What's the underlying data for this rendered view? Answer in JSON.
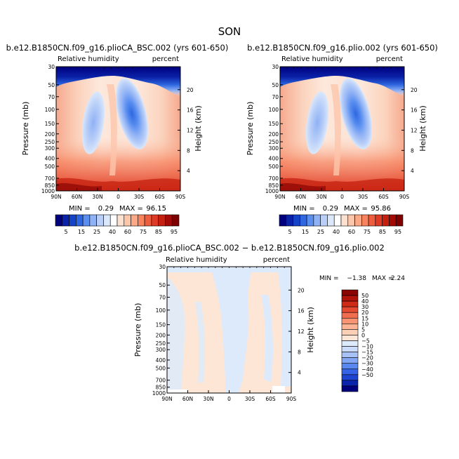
{
  "figure_title": "SON",
  "colors": {
    "rh_levels": [
      "#00007f",
      "#0a22a8",
      "#1443c8",
      "#2e67e0",
      "#5a8ff0",
      "#8fb1f5",
      "#b9cff8",
      "#dbe8fb",
      "#ffffff",
      "#fde1d0",
      "#fcc6ab",
      "#fba886",
      "#f7835f",
      "#ee5d3e",
      "#de3a25",
      "#c4200f",
      "#a30a05",
      "#7f0000"
    ],
    "diff_levels": [
      "#00007f",
      "#0a24ad",
      "#1e44d0",
      "#3664e6",
      "#5988f0",
      "#82a6f4",
      "#a8c2f7",
      "#cadcfa",
      "#ddeafc",
      "#fde6d6",
      "#fcd0b6",
      "#fbb394",
      "#f89373",
      "#f06e4f",
      "#e44a30",
      "#cf2a18",
      "#b0130a",
      "#8a0404"
    ]
  },
  "chart_data": [
    {
      "type": "heatmap",
      "title": "b.e12.B1850CN.f09_g16.plioCA_BSC.002 (yrs 601-650)",
      "subtitle_left": "Relative humidity",
      "subtitle_right": "percent",
      "ylabel": "Pressure (mb)",
      "ylabel_right": "Height (km)",
      "x_ticks": [
        "90N",
        "60N",
        "30N",
        "0",
        "30S",
        "60S",
        "90S"
      ],
      "x_range": [
        90,
        -90
      ],
      "y_ticks": [
        "30",
        "50",
        "70",
        "100",
        "150",
        "200",
        "250",
        "300",
        "400",
        "500",
        "700",
        "850",
        "1000"
      ],
      "y_range": [
        30,
        1000
      ],
      "y_scale": "log",
      "height_ticks": [
        "20",
        "16",
        "12",
        "8",
        "4"
      ],
      "min_label": "MIN =",
      "min_value": "0.29",
      "max_label": "MAX =",
      "max_value": "96.15",
      "colorbar_labels": [
        "5",
        "15",
        "25",
        "40",
        "60",
        "75",
        "85",
        "95"
      ]
    },
    {
      "type": "heatmap",
      "title": "b.e12.B1850CN.f09_g16.plio.002 (yrs 601-650)",
      "subtitle_left": "Relative humidity",
      "subtitle_right": "percent",
      "ylabel": "Pressure (mb)",
      "ylabel_right": "Height (km)",
      "x_ticks": [
        "90N",
        "60N",
        "30N",
        "0",
        "30S",
        "60S",
        "90S"
      ],
      "x_range": [
        90,
        -90
      ],
      "y_ticks": [
        "30",
        "50",
        "70",
        "100",
        "150",
        "200",
        "250",
        "300",
        "400",
        "500",
        "700",
        "850",
        "1000"
      ],
      "y_range": [
        30,
        1000
      ],
      "y_scale": "log",
      "height_ticks": [
        "20",
        "16",
        "12",
        "8",
        "4"
      ],
      "min_label": "MIN =",
      "min_value": "0.29",
      "max_label": "MAX =",
      "max_value": "95.86",
      "colorbar_labels": [
        "5",
        "15",
        "25",
        "40",
        "60",
        "75",
        "85",
        "95"
      ]
    },
    {
      "type": "heatmap",
      "title": "b.e12.B1850CN.f09_g16.plioCA_BSC.002 − b.e12.B1850CN.f09_g16.plio.002",
      "subtitle_left": "Relative humidity",
      "subtitle_right": "percent",
      "ylabel": "Pressure (mb)",
      "ylabel_right": "Height (km)",
      "x_ticks": [
        "90N",
        "60N",
        "30N",
        "0",
        "30S",
        "60S",
        "90S"
      ],
      "x_range": [
        90,
        -90
      ],
      "y_ticks": [
        "30",
        "50",
        "70",
        "100",
        "150",
        "200",
        "250",
        "300",
        "400",
        "500",
        "700",
        "850",
        "1000"
      ],
      "y_range": [
        30,
        1000
      ],
      "y_scale": "log",
      "height_ticks": [
        "20",
        "16",
        "12",
        "8",
        "4"
      ],
      "min_label": "MIN =",
      "min_value": "−1.38",
      "max_label": "MAX =",
      "max_value": "2.24",
      "colorbar_labels": [
        "50",
        "40",
        "30",
        "20",
        "15",
        "10",
        "5",
        "0",
        "−5",
        "−10",
        "−15",
        "−20",
        "−30",
        "−40",
        "−50"
      ]
    }
  ]
}
